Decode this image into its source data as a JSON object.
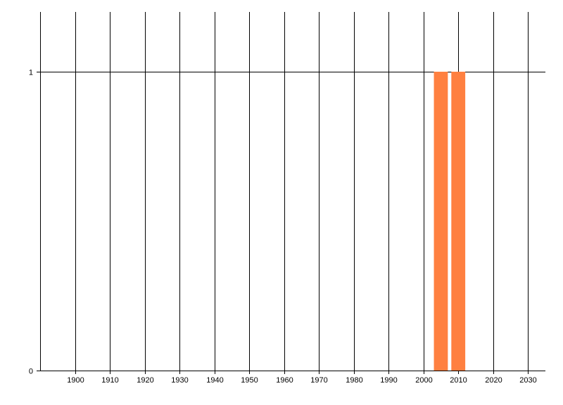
{
  "chart_data": {
    "type": "bar",
    "title": "",
    "xlabel": "",
    "ylabel": "",
    "x": [
      2005,
      2010
    ],
    "values": [
      1,
      1
    ],
    "bar_width_years": 4,
    "xlim": [
      1890,
      2035
    ],
    "ylim": [
      0,
      1.2
    ],
    "x_ticks": [
      1900,
      1910,
      1920,
      1930,
      1940,
      1950,
      1960,
      1970,
      1980,
      1990,
      2000,
      2010,
      2020,
      2030
    ],
    "x_tick_labels": [
      "1900",
      "1910",
      "1920",
      "1930",
      "1940",
      "1950",
      "1960",
      "1970",
      "1980",
      "1990",
      "2000",
      "2010",
      "2020",
      "2030"
    ],
    "y_ticks": [
      0,
      1
    ],
    "y_tick_labels": [
      "0",
      "1"
    ],
    "grid": true,
    "bar_color": "#FF8040",
    "grid_color": "#000000"
  }
}
